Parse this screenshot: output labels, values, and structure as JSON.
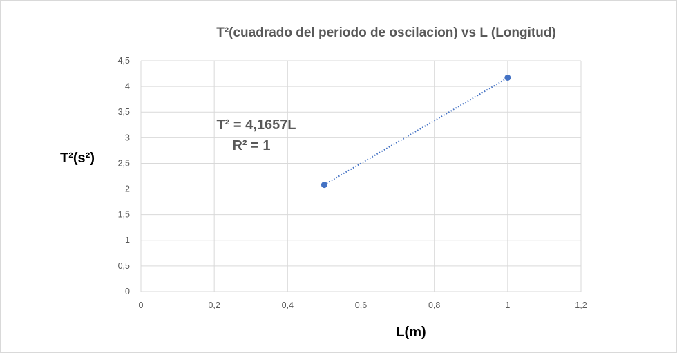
{
  "chart_data": {
    "type": "scatter",
    "title": "T²(cuadrado  del periodo de oscilacion) vs L (Longitud)",
    "xlabel": "L(m)",
    "ylabel": "T²(s²)",
    "xlim": [
      0,
      1.2
    ],
    "ylim": [
      0,
      4.5
    ],
    "x_ticks": [
      "0",
      "0,2",
      "0,4",
      "0,6",
      "0,8",
      "1",
      "1,2"
    ],
    "y_ticks": [
      "0",
      "0,5",
      "1",
      "1,5",
      "2",
      "2,5",
      "3",
      "3,5",
      "4",
      "4,5"
    ],
    "grid": true,
    "series": [
      {
        "points": [
          {
            "x": 0.5,
            "y": 2.08
          },
          {
            "x": 1.0,
            "y": 4.17
          }
        ],
        "color": "#4472c4"
      }
    ],
    "trendline": {
      "type": "linear",
      "slope": 4.1657,
      "style": "dotted",
      "color": "#4472c4",
      "equation": "T² = 4,1657L",
      "r_squared": "R² = 1"
    }
  }
}
